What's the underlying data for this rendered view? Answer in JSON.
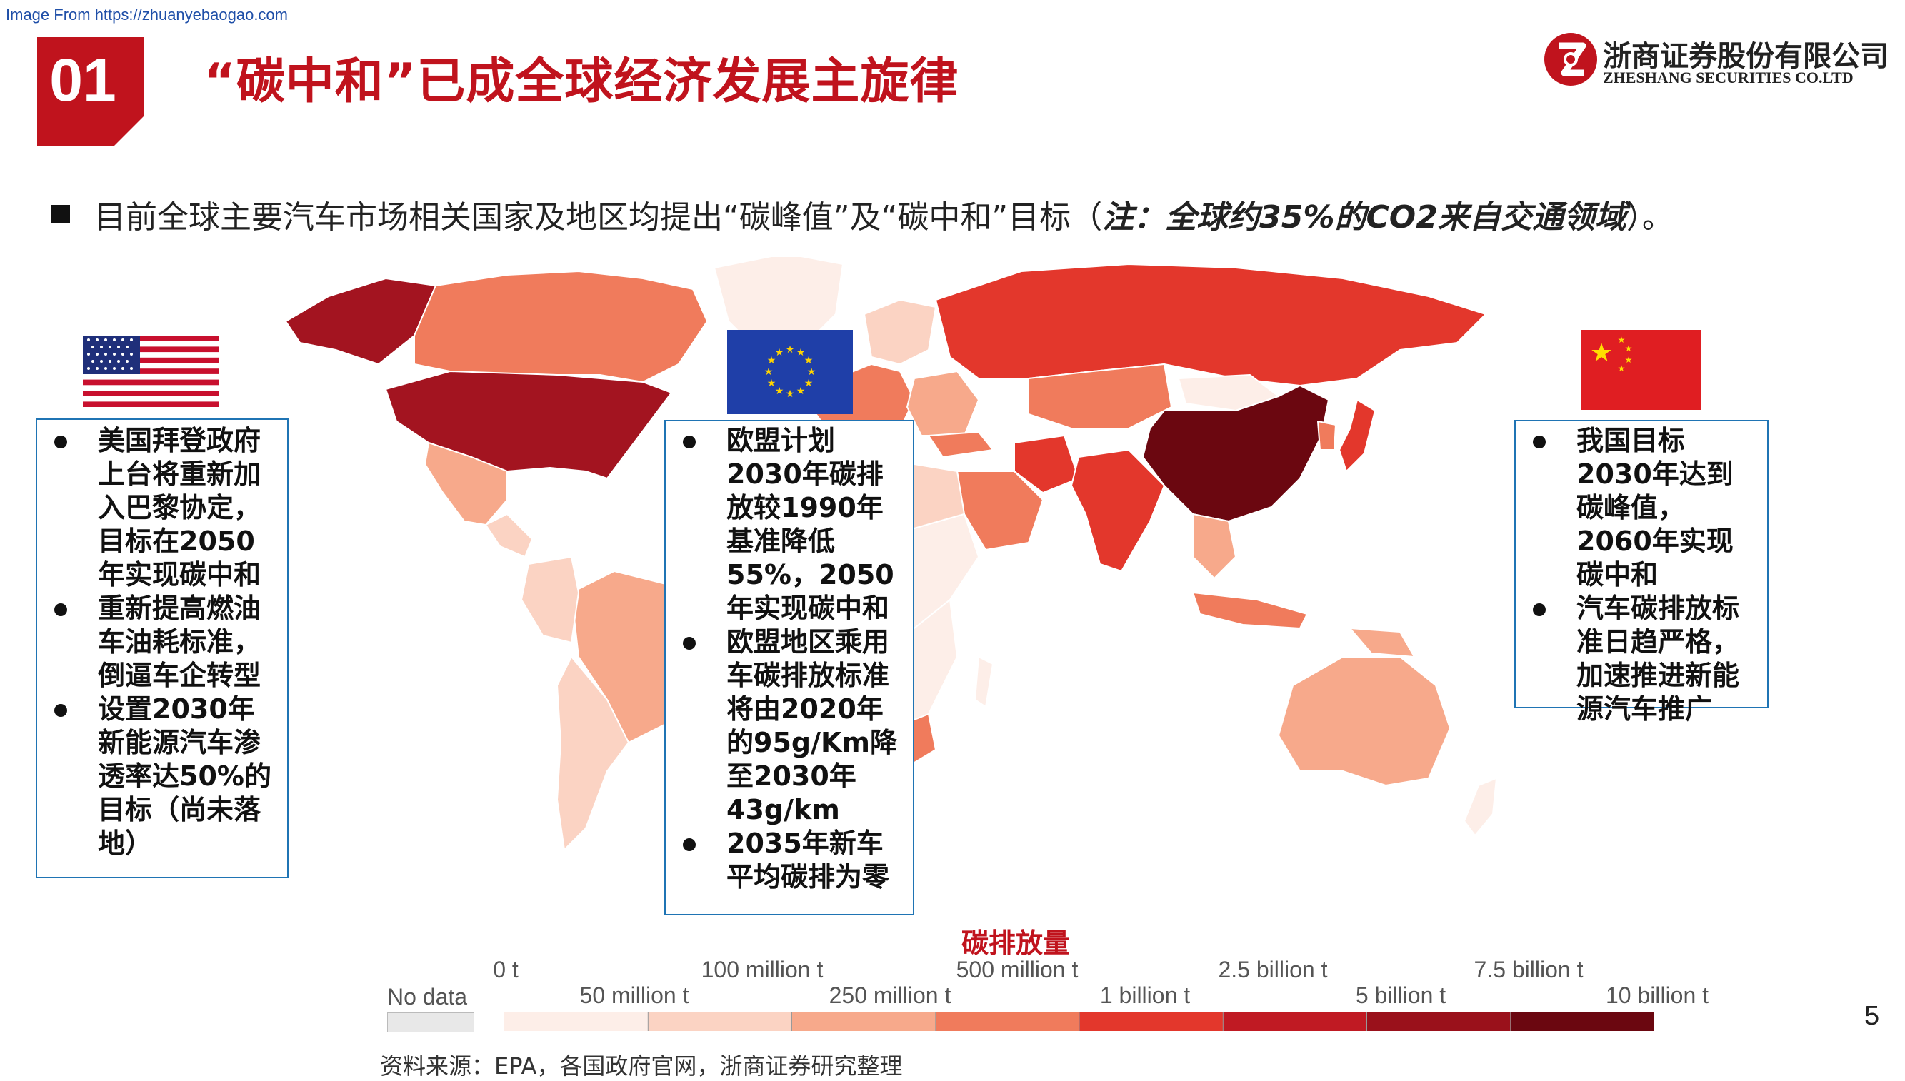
{
  "watermark": "Image From https://zhuanyebaogao.com",
  "section_number": "01",
  "title": "“碳中和”已成全球经济发展主旋律",
  "logo": {
    "cn": "浙商证券股份有限公司",
    "en": "ZHESHANG SECURITIES CO.LTD"
  },
  "intro": {
    "text": "目前全球主要汽车市场相关国家及地区均提出“碳峰值”及“碳中和”目标（",
    "note": "注：全球约35%的CO2来自交通领域",
    "end": "）。"
  },
  "flags": {
    "us": "us-flag",
    "eu": "eu-flag",
    "cn": "china-flag"
  },
  "us_box": {
    "items": [
      "美国拜登政府上台将重新加入巴黎协定，目标在2050年实现碳中和",
      "重新提高燃油车油耗标准，倒逼车企转型",
      "设置2030年新能源汽车渗透率达50%的目标（尚未落地）"
    ]
  },
  "eu_box": {
    "items": [
      "欧盟计划2030年碳排放较1990年基准降低55%，2050年实现碳中和",
      "欧盟地区乘用车碳排放标准将由2020年的95g/Km降至2030年43g/km",
      "2035年新车平均碳排为零"
    ]
  },
  "cn_box": {
    "items": [
      "我国目标2030年达到碳峰值，2060年实现碳中和",
      "汽车碳排放标准日趋严格，加速推进新能源汽车推广"
    ]
  },
  "legend": {
    "title": "碳排放量",
    "no_data": "No data",
    "top_labels": [
      "0 t",
      "100 million t",
      "500 million t",
      "2.5 billion t",
      "7.5 billion t"
    ],
    "bottom_labels": [
      "50 million t",
      "250 million t",
      "1 billion t",
      "5 billion t",
      "10 billion t"
    ],
    "colors": [
      "#fdeee8",
      "#fbd3c3",
      "#f7a98b",
      "#f07b5c",
      "#e3372c",
      "#c01a23",
      "#9a111b",
      "#6b0710"
    ]
  },
  "source": "资料来源：EPA，各国政府官网，浙商证券研究整理",
  "page_number": "5"
}
